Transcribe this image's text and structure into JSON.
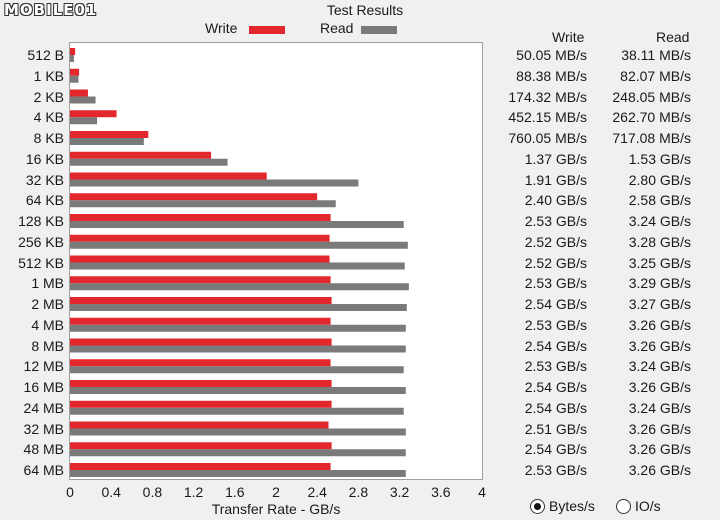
{
  "window": {
    "logo": "MOBILE01",
    "title": "Test Results"
  },
  "legend": {
    "write": "Write",
    "read": "Read"
  },
  "colors": {
    "write": "#e3282d",
    "read": "#7a7a7a"
  },
  "table": {
    "headers": {
      "write": "Write",
      "read": "Read"
    },
    "rows": [
      {
        "write": "50.05 MB/s",
        "read": "38.11 MB/s"
      },
      {
        "write": "88.38 MB/s",
        "read": "82.07 MB/s"
      },
      {
        "write": "174.32 MB/s",
        "read": "248.05 MB/s"
      },
      {
        "write": "452.15 MB/s",
        "read": "262.70 MB/s"
      },
      {
        "write": "760.05 MB/s",
        "read": "717.08 MB/s"
      },
      {
        "write": "1.37 GB/s",
        "read": "1.53 GB/s"
      },
      {
        "write": "1.91 GB/s",
        "read": "2.80 GB/s"
      },
      {
        "write": "2.40 GB/s",
        "read": "2.58 GB/s"
      },
      {
        "write": "2.53 GB/s",
        "read": "3.24 GB/s"
      },
      {
        "write": "2.52 GB/s",
        "read": "3.28 GB/s"
      },
      {
        "write": "2.52 GB/s",
        "read": "3.25 GB/s"
      },
      {
        "write": "2.53 GB/s",
        "read": "3.29 GB/s"
      },
      {
        "write": "2.54 GB/s",
        "read": "3.27 GB/s"
      },
      {
        "write": "2.53 GB/s",
        "read": "3.26 GB/s"
      },
      {
        "write": "2.54 GB/s",
        "read": "3.26 GB/s"
      },
      {
        "write": "2.53 GB/s",
        "read": "3.24 GB/s"
      },
      {
        "write": "2.54 GB/s",
        "read": "3.26 GB/s"
      },
      {
        "write": "2.54 GB/s",
        "read": "3.24 GB/s"
      },
      {
        "write": "2.51 GB/s",
        "read": "3.26 GB/s"
      },
      {
        "write": "2.54 GB/s",
        "read": "3.26 GB/s"
      },
      {
        "write": "2.53 GB/s",
        "read": "3.26 GB/s"
      }
    ]
  },
  "units": {
    "bytes": "Bytes/s",
    "io": "IO/s",
    "selected": "bytes"
  },
  "chart_data": {
    "type": "bar",
    "orientation": "horizontal",
    "categories": [
      "512 B",
      "1 KB",
      "2 KB",
      "4 KB",
      "8 KB",
      "16 KB",
      "32 KB",
      "64 KB",
      "128 KB",
      "256 KB",
      "512 KB",
      "1 MB",
      "2 MB",
      "4 MB",
      "8 MB",
      "12 MB",
      "16 MB",
      "24 MB",
      "32 MB",
      "48 MB",
      "64 MB"
    ],
    "series": [
      {
        "name": "Write",
        "values": [
          0.05005,
          0.08838,
          0.17432,
          0.45215,
          0.76005,
          1.37,
          1.91,
          2.4,
          2.53,
          2.52,
          2.52,
          2.53,
          2.54,
          2.53,
          2.54,
          2.53,
          2.54,
          2.54,
          2.51,
          2.54,
          2.53
        ]
      },
      {
        "name": "Read",
        "values": [
          0.03811,
          0.08207,
          0.24805,
          0.2627,
          0.71708,
          1.53,
          2.8,
          2.58,
          3.24,
          3.28,
          3.25,
          3.29,
          3.27,
          3.26,
          3.26,
          3.24,
          3.26,
          3.24,
          3.26,
          3.26,
          3.26
        ]
      }
    ],
    "xlabel": "Transfer Rate - GB/s",
    "xlim": [
      0,
      4
    ],
    "xticks": [
      "0",
      "0.4",
      "0.8",
      "1.2",
      "1.6",
      "2",
      "2.4",
      "2.8",
      "3.2",
      "3.6",
      "4"
    ],
    "legend": "top"
  }
}
